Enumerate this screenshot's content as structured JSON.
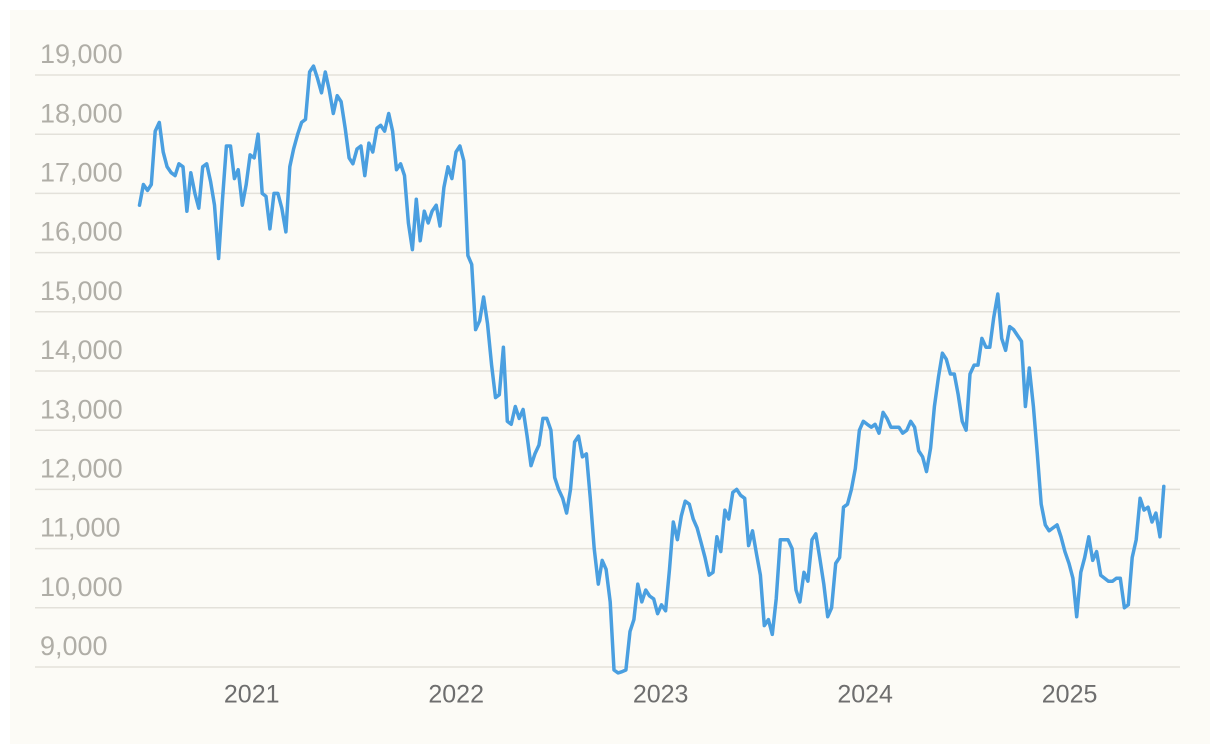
{
  "chart_data": {
    "type": "line",
    "xlim": [
      2019.94,
      2025.54
    ],
    "ylim": [
      8800,
      19400
    ],
    "xticks": [
      2021,
      2022,
      2023,
      2024,
      2025
    ],
    "yticks": [
      {
        "value": 9000,
        "label": "9,000"
      },
      {
        "value": 10000,
        "label": "10,000"
      },
      {
        "value": 11000,
        "label": "11,000"
      },
      {
        "value": 12000,
        "label": "12,000"
      },
      {
        "value": 13000,
        "label": "13,000"
      },
      {
        "value": 14000,
        "label": "14,000"
      },
      {
        "value": 15000,
        "label": "15,000"
      },
      {
        "value": 16000,
        "label": "16,000"
      },
      {
        "value": 17000,
        "label": "17,000"
      },
      {
        "value": 18000,
        "label": "18,000"
      },
      {
        "value": 19000,
        "label": "19,000"
      }
    ],
    "grid": true,
    "color": "#4a9fe0",
    "x": [
      2020.451,
      2020.47,
      2020.49,
      2020.509,
      2020.528,
      2020.548,
      2020.567,
      2020.586,
      2020.606,
      2020.625,
      2020.644,
      2020.664,
      2020.683,
      2020.702,
      2020.722,
      2020.741,
      2020.76,
      2020.78,
      2020.799,
      2020.818,
      2020.838,
      2020.857,
      2020.876,
      2020.896,
      2020.915,
      2020.934,
      2020.954,
      2020.973,
      2020.992,
      2021.012,
      2021.031,
      2021.051,
      2021.07,
      2021.089,
      2021.109,
      2021.128,
      2021.147,
      2021.167,
      2021.186,
      2021.205,
      2021.225,
      2021.244,
      2021.263,
      2021.283,
      2021.302,
      2021.321,
      2021.341,
      2021.36,
      2021.379,
      2021.399,
      2021.418,
      2021.437,
      2021.457,
      2021.476,
      2021.495,
      2021.515,
      2021.534,
      2021.553,
      2021.573,
      2021.592,
      2021.612,
      2021.631,
      2021.65,
      2021.67,
      2021.689,
      2021.708,
      2021.728,
      2021.747,
      2021.766,
      2021.786,
      2021.805,
      2021.824,
      2021.844,
      2021.863,
      2021.882,
      2021.902,
      2021.921,
      2021.94,
      2021.96,
      2021.979,
      2021.999,
      2022.018,
      2022.037,
      2022.057,
      2022.076,
      2022.095,
      2022.115,
      2022.134,
      2022.153,
      2022.173,
      2022.192,
      2022.211,
      2022.231,
      2022.25,
      2022.269,
      2022.289,
      2022.308,
      2022.327,
      2022.347,
      2022.366,
      2022.385,
      2022.405,
      2022.424,
      2022.443,
      2022.463,
      2022.482,
      2022.501,
      2022.521,
      2022.54,
      2022.559,
      2022.579,
      2022.598,
      2022.617,
      2022.637,
      2022.656,
      2022.675,
      2022.695,
      2022.714,
      2022.733,
      2022.753,
      2022.772,
      2022.792,
      2022.811,
      2022.83,
      2022.85,
      2022.869,
      2022.888,
      2022.908,
      2022.927,
      2022.946,
      2022.966,
      2022.985,
      2023.004,
      2023.024,
      2023.043,
      2023.062,
      2023.082,
      2023.101,
      2023.12,
      2023.14,
      2023.159,
      2023.178,
      2023.198,
      2023.217,
      2023.236,
      2023.256,
      2023.275,
      2023.294,
      2023.314,
      2023.333,
      2023.353,
      2023.372,
      2023.391,
      2023.411,
      2023.43,
      2023.449,
      2023.469,
      2023.488,
      2023.507,
      2023.527,
      2023.546,
      2023.565,
      2023.585,
      2023.604,
      2023.623,
      2023.643,
      2023.662,
      2023.681,
      2023.701,
      2023.72,
      2023.74,
      2023.759,
      2023.778,
      2023.798,
      2023.817,
      2023.836,
      2023.856,
      2023.875,
      2023.894,
      2023.914,
      2023.933,
      2023.952,
      2023.972,
      2023.991,
      2024.01,
      2024.03,
      2024.049,
      2024.068,
      2024.088,
      2024.107,
      2024.126,
      2024.146,
      2024.165,
      2024.184,
      2024.204,
      2024.223,
      2024.242,
      2024.262,
      2024.281,
      2024.3,
      2024.32,
      2024.339,
      2024.359,
      2024.378,
      2024.397,
      2024.417,
      2024.436,
      2024.455,
      2024.475,
      2024.494,
      2024.513,
      2024.533,
      2024.552,
      2024.571,
      2024.591,
      2024.61,
      2024.629,
      2024.649,
      2024.668,
      2024.687,
      2024.707,
      2024.726,
      2024.745,
      2024.765,
      2024.784,
      2024.803,
      2024.823,
      2024.842,
      2024.861,
      2024.881,
      2024.9,
      2024.919,
      2024.939,
      2024.958,
      2024.977,
      2024.997,
      2025.016,
      2025.035,
      2025.055,
      2025.074,
      2025.094,
      2025.113,
      2025.132,
      2025.152,
      2025.171,
      2025.19,
      2025.21,
      2025.229,
      2025.248,
      2025.268,
      2025.287,
      2025.306,
      2025.326,
      2025.345,
      2025.364,
      2025.384,
      2025.403,
      2025.422,
      2025.442,
      2025.461
    ],
    "values": [
      16800,
      17150,
      17050,
      17150,
      18050,
      18200,
      17700,
      17450,
      17350,
      17300,
      17500,
      17450,
      16700,
      17350,
      17000,
      16750,
      17450,
      17500,
      17200,
      16800,
      15900,
      16900,
      17800,
      17800,
      17250,
      17400,
      16800,
      17150,
      17650,
      17600,
      18000,
      17000,
      16950,
      16400,
      17000,
      17000,
      16750,
      16350,
      17450,
      17750,
      18000,
      18200,
      18250,
      19050,
      19150,
      18950,
      18700,
      19050,
      18750,
      18350,
      18650,
      18550,
      18100,
      17600,
      17500,
      17750,
      17800,
      17300,
      17850,
      17700,
      18100,
      18150,
      18050,
      18350,
      18050,
      17400,
      17500,
      17300,
      16500,
      16050,
      16900,
      16200,
      16700,
      16500,
      16700,
      16800,
      16450,
      17100,
      17450,
      17250,
      17700,
      17800,
      17550,
      15950,
      15800,
      14700,
      14850,
      15250,
      14800,
      14100,
      13550,
      13600,
      14400,
      13150,
      13100,
      13400,
      13200,
      13350,
      12900,
      12400,
      12600,
      12750,
      13200,
      13200,
      13000,
      12200,
      12000,
      11850,
      11600,
      12000,
      12800,
      12900,
      12550,
      12600,
      11850,
      11000,
      10400,
      10800,
      10650,
      10100,
      8950,
      8900,
      8920,
      8950,
      9600,
      9800,
      10400,
      10100,
      10300,
      10200,
      10150,
      9900,
      10050,
      9950,
      10650,
      11450,
      11150,
      11550,
      11800,
      11750,
      11500,
      11350,
      11100,
      10850,
      10550,
      10600,
      11200,
      10950,
      11650,
      11500,
      11950,
      12000,
      11900,
      11850,
      11050,
      11300,
      10900,
      10550,
      9700,
      9800,
      9550,
      10150,
      11150,
      11150,
      11150,
      11000,
      10300,
      10100,
      10600,
      10450,
      11150,
      11250,
      10850,
      10400,
      9850,
      10000,
      10750,
      10850,
      11700,
      11750,
      12000,
      12350,
      13000,
      13150,
      13100,
      13050,
      13100,
      12950,
      13300,
      13200,
      13050,
      13050,
      13050,
      12950,
      13000,
      13150,
      13050,
      12650,
      12550,
      12300,
      12700,
      13400,
      13900,
      14300,
      14200,
      13950,
      13950,
      13600,
      13150,
      13000,
      13950,
      14100,
      14100,
      14550,
      14400,
      14400,
      14900,
      15300,
      14550,
      14350,
      14750,
      14700,
      14600,
      14500,
      13400,
      14050,
      13400,
      12600,
      11750,
      11400,
      11300,
      11350,
      11400,
      11200,
      10950,
      10750,
      10500,
      9850,
      10600,
      10850,
      11200,
      10800,
      10950,
      10550,
      10500,
      10450,
      10450,
      10500,
      10500,
      10000,
      10050,
      10850,
      11150,
      11850,
      11650,
      11700,
      11450,
      11600,
      11200,
      12050
    ]
  }
}
